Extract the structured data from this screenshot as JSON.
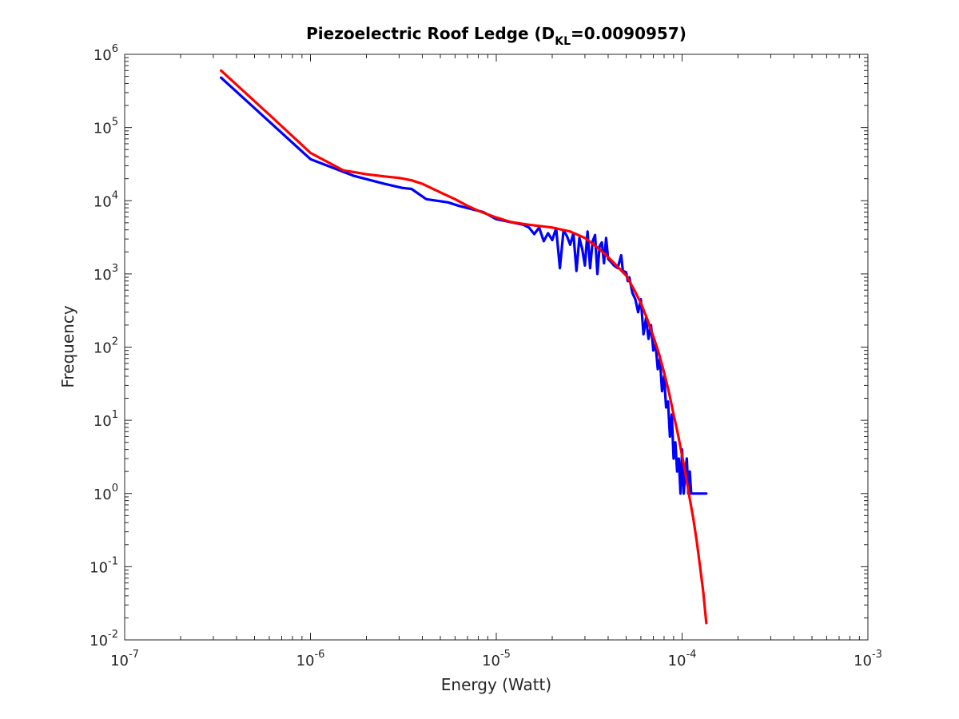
{
  "chart_data": {
    "type": "line",
    "title": {
      "main": "Piezoelectric Roof Ledge (D",
      "subscript": "KL",
      "suffix": "=0.0090957)"
    },
    "xlabel": "Energy (Watt)",
    "ylabel": "Frequency",
    "xscale": "log",
    "yscale": "log",
    "xlim": [
      1e-07,
      0.001
    ],
    "ylim": [
      0.01,
      1000000
    ],
    "grid": false,
    "legend": "none",
    "x_ticks": [
      {
        "base": "10",
        "exp": "-7",
        "value": 1e-07
      },
      {
        "base": "10",
        "exp": "-6",
        "value": 1e-06
      },
      {
        "base": "10",
        "exp": "-5",
        "value": 1e-05
      },
      {
        "base": "10",
        "exp": "-4",
        "value": 0.0001
      },
      {
        "base": "10",
        "exp": "-3",
        "value": 0.001
      }
    ],
    "y_ticks": [
      {
        "base": "10",
        "exp": "-2",
        "value": 0.01
      },
      {
        "base": "10",
        "exp": "-1",
        "value": 0.1
      },
      {
        "base": "10",
        "exp": "0",
        "value": 1
      },
      {
        "base": "10",
        "exp": "1",
        "value": 10
      },
      {
        "base": "10",
        "exp": "2",
        "value": 100
      },
      {
        "base": "10",
        "exp": "3",
        "value": 1000
      },
      {
        "base": "10",
        "exp": "4",
        "value": 10000
      },
      {
        "base": "10",
        "exp": "5",
        "value": 100000
      },
      {
        "base": "10",
        "exp": "6",
        "value": 1000000
      }
    ],
    "series": [
      {
        "color": "#0000ff",
        "x": [
          3.3e-07,
          1e-06,
          1.7e-06,
          2.5e-06,
          3.1e-06,
          3.5e-06,
          4.2e-06,
          5.5e-06,
          6.3e-06,
          8.5e-06,
          1e-05,
          1.4e-05,
          1.5e-05,
          1.6e-05,
          1.7e-05,
          1.8e-05,
          1.9e-05,
          2e-05,
          2.1e-05,
          2.2e-05,
          2.3e-05,
          2.4e-05,
          2.5e-05,
          2.6e-05,
          2.7e-05,
          2.8e-05,
          2.9e-05,
          3e-05,
          3.1e-05,
          3.2e-05,
          3.3e-05,
          3.4e-05,
          3.5e-05,
          3.6e-05,
          3.7e-05,
          3.8e-05,
          3.9e-05,
          4e-05,
          4.1e-05,
          4.3e-05,
          4.5e-05,
          4.7e-05,
          4.8e-05,
          5e-05,
          5.1e-05,
          5.2e-05,
          5.4e-05,
          5.6e-05,
          5.8e-05,
          6e-05,
          6.2e-05,
          6.4e-05,
          6.6e-05,
          6.8e-05,
          7e-05,
          7.2e-05,
          7.4e-05,
          7.6e-05,
          7.8e-05,
          8e-05,
          8.2e-05,
          8.4e-05,
          8.6e-05,
          8.8e-05,
          9e-05,
          9.2e-05,
          9.4e-05,
          9.6e-05,
          9.8e-05,
          0.0001,
          0.000102,
          0.000104,
          0.000106,
          0.000108,
          0.00011,
          0.000112,
          0.000114,
          0.000117,
          0.00012,
          0.000135
        ],
        "y": [
          480000,
          37000,
          22000,
          17000,
          15000,
          14500,
          10500,
          9500,
          8500,
          7000,
          5600,
          4700,
          4300,
          3500,
          4300,
          2800,
          3600,
          2900,
          4200,
          1200,
          3900,
          3300,
          2500,
          3600,
          1100,
          3100,
          2200,
          1300,
          3800,
          1200,
          2800,
          3400,
          1000,
          2400,
          2700,
          1400,
          3100,
          1600,
          1500,
          1300,
          1200,
          1800,
          1100,
          1050,
          800,
          900,
          550,
          450,
          300,
          450,
          150,
          250,
          130,
          200,
          90,
          110,
          50,
          70,
          25,
          40,
          15,
          18,
          6,
          12,
          3,
          5,
          2,
          3,
          1,
          4,
          1,
          2,
          3,
          1,
          2,
          1,
          1,
          1,
          1,
          1
        ]
      },
      {
        "color": "#ff0000",
        "x": [
          3.3e-07,
          6e-07,
          1e-06,
          1.5e-06,
          2e-06,
          2.5e-06,
          3e-06,
          3.5e-06,
          4e-06,
          5e-06,
          6e-06,
          7e-06,
          8e-06,
          9e-06,
          1e-05,
          1.2e-05,
          1.5e-05,
          2e-05,
          2.5e-05,
          3e-05,
          3.5e-05,
          4e-05,
          4.5e-05,
          5e-05,
          5.5e-05,
          6e-05,
          6.5e-05,
          7e-05,
          7.5e-05,
          8e-05,
          8.5e-05,
          9e-05,
          9.5e-05,
          0.0001,
          0.000105,
          0.00011,
          0.000115,
          0.00012,
          0.000125,
          0.00013,
          0.000135
        ],
        "y": [
          600000,
          150000,
          45000,
          26000,
          23000,
          21500,
          20500,
          19000,
          17000,
          13000,
          10500,
          8500,
          7300,
          6500,
          5900,
          5100,
          4700,
          4300,
          3800,
          3100,
          2300,
          1700,
          1250,
          950,
          620,
          400,
          240,
          140,
          82,
          45,
          24,
          12,
          6.5,
          3.3,
          1.7,
          0.85,
          0.45,
          0.22,
          0.1,
          0.045,
          0.017
        ]
      }
    ]
  }
}
